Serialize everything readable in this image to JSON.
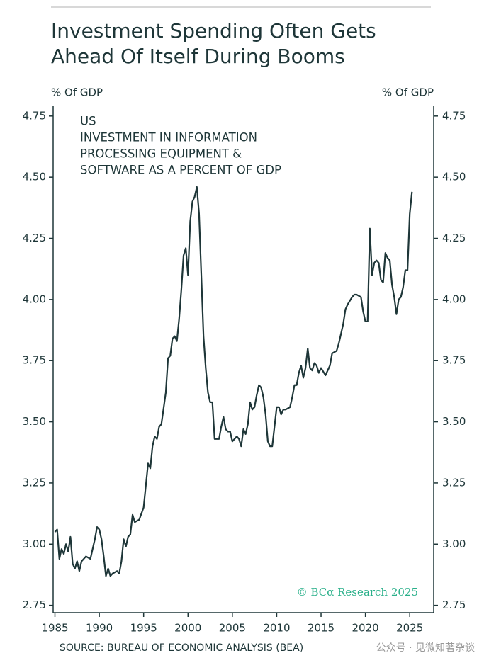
{
  "chart_data": {
    "type": "line",
    "title": "Investment Spending Often Gets Ahead Of Itself During Booms",
    "ylabel": "% Of GDP",
    "y2label": "% Of GDP",
    "annotation": [
      "US",
      "INVESTMENT IN INFORMATION",
      "PROCESSING EQUIPMENT &",
      "SOFTWARE AS A PERCENT OF GDP"
    ],
    "credit": "© BCα Research 2025",
    "source": "SOURCE: BUREAU OF ECONOMIC ANALYSIS (BEA)",
    "watermark": "公众号 · 见微知著杂谈",
    "xlim": [
      1984.8,
      2027.7
    ],
    "xticks": [
      1985,
      1990,
      1995,
      2000,
      2005,
      2010,
      2015,
      2020,
      2025
    ],
    "ylim": [
      2.72,
      4.79
    ],
    "yticks": [
      2.75,
      {
        "value": 3,
        "label": "3.00"
      },
      3.25,
      {
        "value": 3.5,
        "label": "3.50"
      },
      3.75,
      {
        "value": 4,
        "label": "4.00"
      },
      4.25,
      {
        "value": 4.5,
        "label": "4.50"
      },
      4.75
    ],
    "y2lim": [
      2.72,
      4.79
    ],
    "y2ticks": [
      2.75,
      {
        "value": 3,
        "label": "3.00"
      },
      3.25,
      {
        "value": 3.5,
        "label": "3.50"
      },
      3.75,
      {
        "value": 4,
        "label": "4.00"
      },
      4.25,
      {
        "value": 4.5,
        "label": "4.50"
      },
      4.75
    ],
    "color": "#1e3638",
    "x": [
      1985,
      1985.25,
      1985.5,
      1985.75,
      1986,
      1986.25,
      1986.5,
      1986.75,
      1987,
      1987.25,
      1987.5,
      1987.75,
      1988,
      1988.5,
      1989,
      1989.5,
      1989.75,
      1990,
      1990.25,
      1990.5,
      1990.75,
      1991,
      1991.25,
      1991.5,
      1992,
      1992.25,
      1992.5,
      1992.75,
      1993,
      1993.25,
      1993.5,
      1993.75,
      1994,
      1994.5,
      1995,
      1995.5,
      1995.75,
      1996,
      1996.25,
      1996.5,
      1996.75,
      1997,
      1997.5,
      1997.75,
      1998,
      1998.25,
      1998.5,
      1998.75,
      1999,
      1999.25,
      1999.5,
      1999.75,
      2000,
      2000.25,
      2000.5,
      2000.75,
      2001,
      2001.25,
      2001.5,
      2001.75,
      2002,
      2002.25,
      2002.5,
      2002.75,
      2003,
      2003.25,
      2003.5,
      2003.75,
      2004,
      2004.25,
      2004.5,
      2004.75,
      2005,
      2005.5,
      2005.75,
      2006,
      2006.25,
      2006.5,
      2006.75,
      2007,
      2007.25,
      2007.5,
      2007.75,
      2008,
      2008.25,
      2008.5,
      2008.75,
      2009,
      2009.25,
      2009.5,
      2009.75,
      2010,
      2010.25,
      2010.5,
      2010.75,
      2011,
      2011.5,
      2011.75,
      2012,
      2012.25,
      2012.5,
      2012.75,
      2013,
      2013.25,
      2013.5,
      2013.75,
      2014,
      2014.25,
      2014.5,
      2014.75,
      2015,
      2015.5,
      2016,
      2016.25,
      2016.75,
      2017,
      2017.5,
      2017.75,
      2018,
      2018.5,
      2018.75,
      2019,
      2019.5,
      2019.75,
      2020,
      2020.25,
      2020.5,
      2020.75,
      2021,
      2021.25,
      2021.5,
      2021.75,
      2022,
      2022.25,
      2022.5,
      2022.75,
      2023,
      2023.25,
      2023.5,
      2023.75,
      2024,
      2024.25,
      2024.5,
      2024.75,
      2025,
      2025.25
    ],
    "values": [
      3.05,
      3.06,
      2.94,
      2.98,
      2.96,
      3.0,
      2.97,
      3.03,
      2.92,
      2.9,
      2.93,
      2.89,
      2.93,
      2.95,
      2.94,
      3.02,
      3.07,
      3.06,
      3.02,
      2.95,
      2.87,
      2.9,
      2.87,
      2.88,
      2.89,
      2.88,
      2.93,
      3.02,
      2.99,
      3.03,
      3.04,
      3.12,
      3.09,
      3.1,
      3.15,
      3.33,
      3.31,
      3.4,
      3.44,
      3.43,
      3.48,
      3.49,
      3.62,
      3.76,
      3.77,
      3.84,
      3.85,
      3.83,
      3.92,
      4.04,
      4.18,
      4.21,
      4.1,
      4.32,
      4.4,
      4.42,
      4.46,
      4.35,
      4.1,
      3.85,
      3.72,
      3.62,
      3.58,
      3.58,
      3.43,
      3.43,
      3.43,
      3.48,
      3.52,
      3.47,
      3.46,
      3.46,
      3.42,
      3.44,
      3.43,
      3.4,
      3.47,
      3.45,
      3.49,
      3.58,
      3.55,
      3.56,
      3.61,
      3.65,
      3.64,
      3.6,
      3.53,
      3.42,
      3.4,
      3.4,
      3.48,
      3.56,
      3.56,
      3.53,
      3.55,
      3.55,
      3.56,
      3.6,
      3.65,
      3.65,
      3.7,
      3.73,
      3.68,
      3.72,
      3.8,
      3.72,
      3.71,
      3.74,
      3.73,
      3.7,
      3.72,
      3.69,
      3.73,
      3.78,
      3.79,
      3.82,
      3.9,
      3.96,
      3.98,
      4.01,
      4.02,
      4.02,
      4.01,
      3.95,
      3.91,
      3.91,
      4.29,
      4.1,
      4.15,
      4.16,
      4.15,
      4.08,
      4.07,
      4.19,
      4.17,
      4.16,
      4.06,
      4.01,
      3.94,
      4.0,
      4.01,
      4.05,
      4.12,
      4.12,
      4.35,
      4.44
    ]
  }
}
